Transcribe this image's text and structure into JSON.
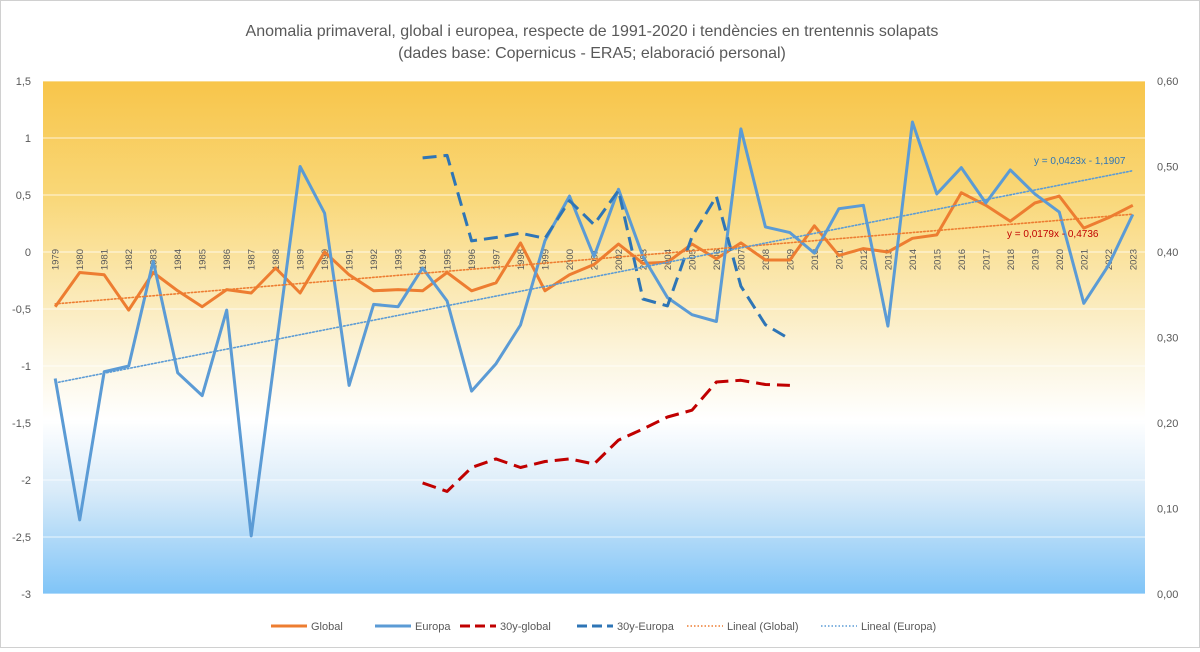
{
  "chart_data": {
    "type": "line",
    "title": "Anomalia primaveral, global i europea, respecte de 1991-2020 i tendències en trentennis solapats",
    "subtitle": "(dades base: Copernicus - ERA5; elaboració personal)",
    "ylim": [
      -3,
      1.5
    ],
    "y2lim": [
      0,
      0.6
    ],
    "yticks": [
      "1,5",
      "1",
      "0,5",
      "0",
      "-0,5",
      "-1",
      "-1,5",
      "-2",
      "-2,5",
      "-3"
    ],
    "y2ticks": [
      "0,60",
      "0,50",
      "0,40",
      "0,30",
      "0,20",
      "0,10",
      "0,00"
    ],
    "categories": [
      "1979",
      "1980",
      "1981",
      "1982",
      "1983",
      "1984",
      "1985",
      "1986",
      "1987",
      "1988",
      "1989",
      "1990",
      "1991",
      "1992",
      "1993",
      "1994",
      "1995",
      "1996",
      "1997",
      "1998",
      "1999",
      "2000",
      "2001",
      "2002",
      "2003",
      "2004",
      "2005",
      "2006",
      "2007",
      "2008",
      "2009",
      "2010",
      "2011",
      "2012",
      "2013",
      "2014",
      "2015",
      "2016",
      "2017",
      "2018",
      "2019",
      "2020",
      "2021",
      "2022",
      "2023"
    ],
    "series": [
      {
        "name": "Global",
        "axis": "primary",
        "color": "#ED7D31",
        "style": "solid",
        "values": [
          -0.48,
          -0.18,
          -0.2,
          -0.51,
          -0.18,
          -0.34,
          -0.48,
          -0.33,
          -0.36,
          -0.14,
          -0.36,
          0.0,
          -0.2,
          -0.34,
          -0.33,
          -0.34,
          -0.18,
          -0.34,
          -0.27,
          0.08,
          -0.34,
          -0.2,
          -0.11,
          0.07,
          -0.1,
          -0.09,
          0.07,
          -0.06,
          0.08,
          -0.07,
          -0.07,
          0.23,
          -0.03,
          0.03,
          0.0,
          0.12,
          0.15,
          0.52,
          0.41,
          0.27,
          0.43,
          0.49,
          0.21,
          0.3,
          0.41
        ]
      },
      {
        "name": "Europa",
        "axis": "primary",
        "color": "#5B9BD5",
        "style": "solid",
        "values": [
          -1.11,
          -2.35,
          -1.05,
          -1.0,
          -0.08,
          -1.06,
          -1.26,
          -0.51,
          -2.49,
          -0.87,
          0.75,
          0.34,
          -1.17,
          -0.46,
          -0.48,
          -0.14,
          -0.43,
          -1.22,
          -0.98,
          -0.64,
          0.1,
          0.49,
          -0.04,
          0.55,
          -0.04,
          -0.4,
          -0.55,
          -0.61,
          1.08,
          0.22,
          0.17,
          -0.01,
          0.38,
          0.41,
          -0.65,
          1.14,
          0.51,
          0.74,
          0.43,
          0.72,
          0.51,
          0.35,
          -0.45,
          -0.12,
          0.33
        ]
      },
      {
        "name": "30y-global",
        "axis": "secondary",
        "color": "#C00000",
        "style": "dash",
        "x": [
          "1994",
          "1995",
          "1996",
          "1997",
          "1998",
          "1999",
          "2000",
          "2001",
          "2002",
          "2003",
          "2004",
          "2005",
          "2006",
          "2007",
          "2008",
          "2009"
        ],
        "values": [
          0.13,
          0.12,
          0.148,
          0.158,
          0.148,
          0.155,
          0.158,
          0.152,
          0.18,
          0.193,
          0.207,
          0.215,
          0.248,
          0.25,
          0.245,
          0.244
        ]
      },
      {
        "name": "30y-Europa",
        "axis": "secondary",
        "color": "#2E75B6",
        "style": "dash",
        "x": [
          "1994",
          "1995",
          "1996",
          "1997",
          "1998",
          "1999",
          "2000",
          "2001",
          "2002",
          "2003",
          "2004",
          "2005",
          "2006",
          "2007",
          "2008",
          "2009"
        ],
        "values": [
          0.51,
          0.513,
          0.413,
          0.417,
          0.422,
          0.416,
          0.46,
          0.432,
          0.472,
          0.345,
          0.337,
          0.418,
          0.465,
          0.36,
          0.315,
          0.298
        ]
      },
      {
        "name": "Lineal  (Global)",
        "axis": "primary",
        "color": "#ED7D31",
        "style": "dot",
        "trend": {
          "slope": 0.0179,
          "intercept": -0.4736
        }
      },
      {
        "name": "Lineal  (Europa)",
        "axis": "primary",
        "color": "#5B9BD5",
        "style": "dot",
        "trend": {
          "slope": 0.0423,
          "intercept": -1.1907
        }
      }
    ],
    "annotations": [
      {
        "text": "y = 0,0423x - 1,1907",
        "color": "#2E75B6"
      },
      {
        "text": "y = 0,0179x - 0,4736",
        "color": "#C00000"
      }
    ],
    "legend": {
      "placement": "bottom",
      "items": [
        "Global",
        "Europa",
        "30y-global",
        "30y-Europa",
        "Lineal  (Global)",
        "Lineal  (Europa)"
      ]
    },
    "grid": true,
    "background": {
      "top": "#F8C54A",
      "middle": "#FFFFFF",
      "bottom": "#7FC4F7"
    }
  }
}
